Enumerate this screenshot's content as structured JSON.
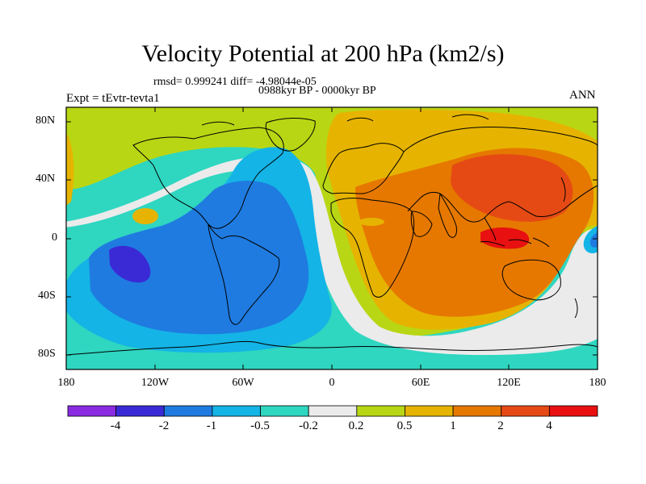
{
  "title": "Velocity Potential at 200 hPa (km2/s)",
  "stats_line": "rmsd= 0.999241 diff= -4.98044e-05",
  "period": "0988kyr BP - 0000kyr BP",
  "experiment": "Expt = tEvtr-tevta1",
  "season": "ANN",
  "lat_labels": [
    "80N",
    "40N",
    "0",
    "40S",
    "80S"
  ],
  "lon_labels": [
    "180",
    "120W",
    "60W",
    "0",
    "60E",
    "120E",
    "180"
  ],
  "colorbar": {
    "labels": [
      "-4",
      "-2",
      "-1",
      "-0.5",
      "-0.2",
      "0.2",
      "0.5",
      "1",
      "2",
      "4"
    ],
    "colors": [
      "#8a2be2",
      "#3a2ad6",
      "#1f7be0",
      "#14b4e6",
      "#2fd6c0",
      "#ebebeb",
      "#b9d614",
      "#e6b400",
      "#e67800",
      "#e64a14",
      "#e81010"
    ]
  },
  "colors": {
    "ocean_background": "#2fd6c0",
    "coastline": "#000000"
  }
}
